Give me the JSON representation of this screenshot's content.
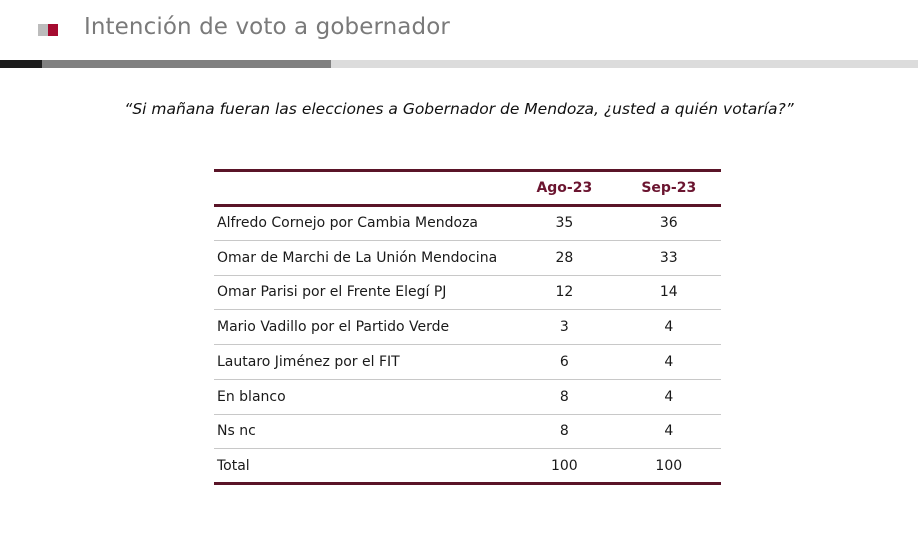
{
  "header": {
    "title": "Intención de voto a gobernador",
    "icon": "two-tone-square-icon",
    "colors": {
      "icon_grey": "#bcbcbc",
      "icon_red": "#a50b30",
      "bar_dark": "#1c1c1c",
      "bar_mid": "#808080",
      "bar_light": "#dcdcdc",
      "title_text": "#7a7a7a"
    }
  },
  "question": "“Si mañana fueran las elecciones a Gobernador de Mendoza, ¿usted a quién votaría?”",
  "table": {
    "columns": [
      "",
      "Ago-23",
      "Sep-23"
    ],
    "rows": [
      {
        "label": "Alfredo Cornejo por Cambia Mendoza",
        "ago": "35",
        "sep": "36"
      },
      {
        "label": "Omar de Marchi de La Unión Mendocina",
        "ago": "28",
        "sep": "33"
      },
      {
        "label": "Omar Parisi por el Frente Elegí PJ",
        "ago": "12",
        "sep": "14"
      },
      {
        "label": "Mario Vadillo por el Partido Verde",
        "ago": "3",
        "sep": "4"
      },
      {
        "label": "Lautaro Jiménez por el FIT",
        "ago": "6",
        "sep": "4"
      },
      {
        "label": "En blanco",
        "ago": "8",
        "sep": "4"
      },
      {
        "label": "Ns nc",
        "ago": "8",
        "sep": "4"
      },
      {
        "label": "Total",
        "ago": "100",
        "sep": "100"
      }
    ],
    "colors": {
      "rule": "#5a1428",
      "header_text": "#6b1530",
      "row_divider": "#c8c8c8"
    }
  }
}
